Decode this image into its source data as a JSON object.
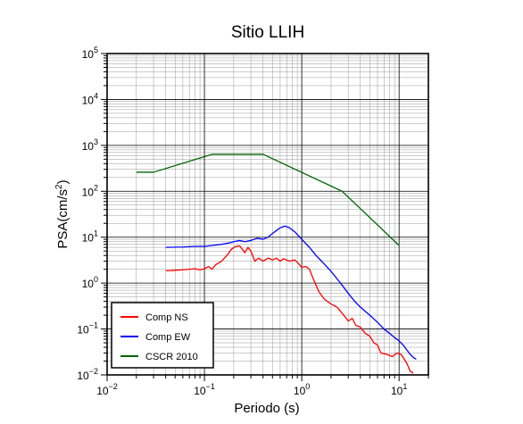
{
  "chart_data": {
    "type": "line",
    "title": "Sitio LLIH",
    "xlabel": "Periodo (s)",
    "ylabel": "PSA(cm/s2)",
    "xscale": "log",
    "yscale": "log",
    "xlim": [
      0.01,
      20
    ],
    "ylim": [
      0.01,
      100000
    ],
    "grid": true,
    "legend_position": "bottom-left",
    "x_tick_labels": [
      {
        "value": 0.01,
        "base": "10",
        "exp": "−2"
      },
      {
        "value": 0.1,
        "base": "10",
        "exp": "−1"
      },
      {
        "value": 1,
        "base": "10",
        "exp": "0"
      },
      {
        "value": 10,
        "base": "10",
        "exp": "1"
      }
    ],
    "y_tick_labels": [
      {
        "value": 0.01,
        "base": "10",
        "exp": "−2"
      },
      {
        "value": 0.1,
        "base": "10",
        "exp": "−1"
      },
      {
        "value": 1,
        "base": "10",
        "exp": "0"
      },
      {
        "value": 10,
        "base": "10",
        "exp": "1"
      },
      {
        "value": 100,
        "base": "10",
        "exp": "2"
      },
      {
        "value": 1000,
        "base": "10",
        "exp": "3"
      },
      {
        "value": 10000,
        "base": "10",
        "exp": "4"
      },
      {
        "value": 100000,
        "base": "10",
        "exp": "5"
      }
    ],
    "series": [
      {
        "name": "Comp NS",
        "color": "#ff0000",
        "points": [
          [
            0.04,
            1.85
          ],
          [
            0.05,
            1.9
          ],
          [
            0.06,
            1.95
          ],
          [
            0.07,
            2.0
          ],
          [
            0.08,
            2.05
          ],
          [
            0.09,
            1.95
          ],
          [
            0.1,
            2.05
          ],
          [
            0.11,
            2.3
          ],
          [
            0.12,
            2.0
          ],
          [
            0.13,
            2.5
          ],
          [
            0.15,
            3.0
          ],
          [
            0.17,
            4.0
          ],
          [
            0.19,
            5.5
          ],
          [
            0.21,
            6.3
          ],
          [
            0.23,
            6.5
          ],
          [
            0.26,
            4.6
          ],
          [
            0.28,
            6.0
          ],
          [
            0.3,
            5.0
          ],
          [
            0.33,
            3.0
          ],
          [
            0.36,
            3.5
          ],
          [
            0.4,
            3.0
          ],
          [
            0.45,
            3.5
          ],
          [
            0.5,
            3.2
          ],
          [
            0.55,
            3.5
          ],
          [
            0.6,
            3.0
          ],
          [
            0.65,
            3.4
          ],
          [
            0.75,
            3.0
          ],
          [
            0.85,
            3.2
          ],
          [
            0.95,
            2.5
          ],
          [
            1.0,
            2.2
          ],
          [
            1.1,
            2.3
          ],
          [
            1.2,
            2.0
          ],
          [
            1.3,
            1.3
          ],
          [
            1.5,
            0.65
          ],
          [
            1.7,
            0.45
          ],
          [
            2.0,
            0.35
          ],
          [
            2.3,
            0.3
          ],
          [
            2.7,
            0.2
          ],
          [
            3.0,
            0.15
          ],
          [
            3.3,
            0.17
          ],
          [
            3.6,
            0.12
          ],
          [
            4.0,
            0.11
          ],
          [
            4.5,
            0.08
          ],
          [
            5.0,
            0.07
          ],
          [
            5.5,
            0.05
          ],
          [
            6.0,
            0.045
          ],
          [
            6.5,
            0.03
          ],
          [
            7.5,
            0.028
          ],
          [
            8.5,
            0.025
          ],
          [
            9.5,
            0.03
          ],
          [
            10.5,
            0.028
          ],
          [
            12.0,
            0.018
          ],
          [
            13.0,
            0.012
          ],
          [
            14.0,
            0.011
          ]
        ]
      },
      {
        "name": "Comp EW",
        "color": "#0000ff",
        "points": [
          [
            0.04,
            6.0
          ],
          [
            0.06,
            6.1
          ],
          [
            0.08,
            6.3
          ],
          [
            0.1,
            6.3
          ],
          [
            0.12,
            6.6
          ],
          [
            0.15,
            7.0
          ],
          [
            0.18,
            7.5
          ],
          [
            0.2,
            8.0
          ],
          [
            0.23,
            8.5
          ],
          [
            0.26,
            8.0
          ],
          [
            0.3,
            8.5
          ],
          [
            0.35,
            9.5
          ],
          [
            0.4,
            9.0
          ],
          [
            0.45,
            10.0
          ],
          [
            0.5,
            12.0
          ],
          [
            0.55,
            14.0
          ],
          [
            0.6,
            16.0
          ],
          [
            0.67,
            17.5
          ],
          [
            0.75,
            16.0
          ],
          [
            0.85,
            13.0
          ],
          [
            1.0,
            9.0
          ],
          [
            1.2,
            6.0
          ],
          [
            1.4,
            4.0
          ],
          [
            1.6,
            3.0
          ],
          [
            2.0,
            1.8
          ],
          [
            2.5,
            1.0
          ],
          [
            3.0,
            0.6
          ],
          [
            3.5,
            0.4
          ],
          [
            4.0,
            0.3
          ],
          [
            5.0,
            0.2
          ],
          [
            6.0,
            0.14
          ],
          [
            7.0,
            0.1
          ],
          [
            8.0,
            0.08
          ],
          [
            9.0,
            0.065
          ],
          [
            10.0,
            0.055
          ],
          [
            11.0,
            0.045
          ],
          [
            12.0,
            0.035
          ],
          [
            13.0,
            0.028
          ],
          [
            14.0,
            0.024
          ],
          [
            15.0,
            0.022
          ]
        ]
      },
      {
        "name": "CSCR 2010",
        "color": "#006400",
        "points": [
          [
            0.02,
            260
          ],
          [
            0.03,
            260
          ],
          [
            0.12,
            640
          ],
          [
            0.4,
            640
          ],
          [
            2.6,
            100
          ],
          [
            10.0,
            6.6
          ]
        ]
      }
    ]
  }
}
